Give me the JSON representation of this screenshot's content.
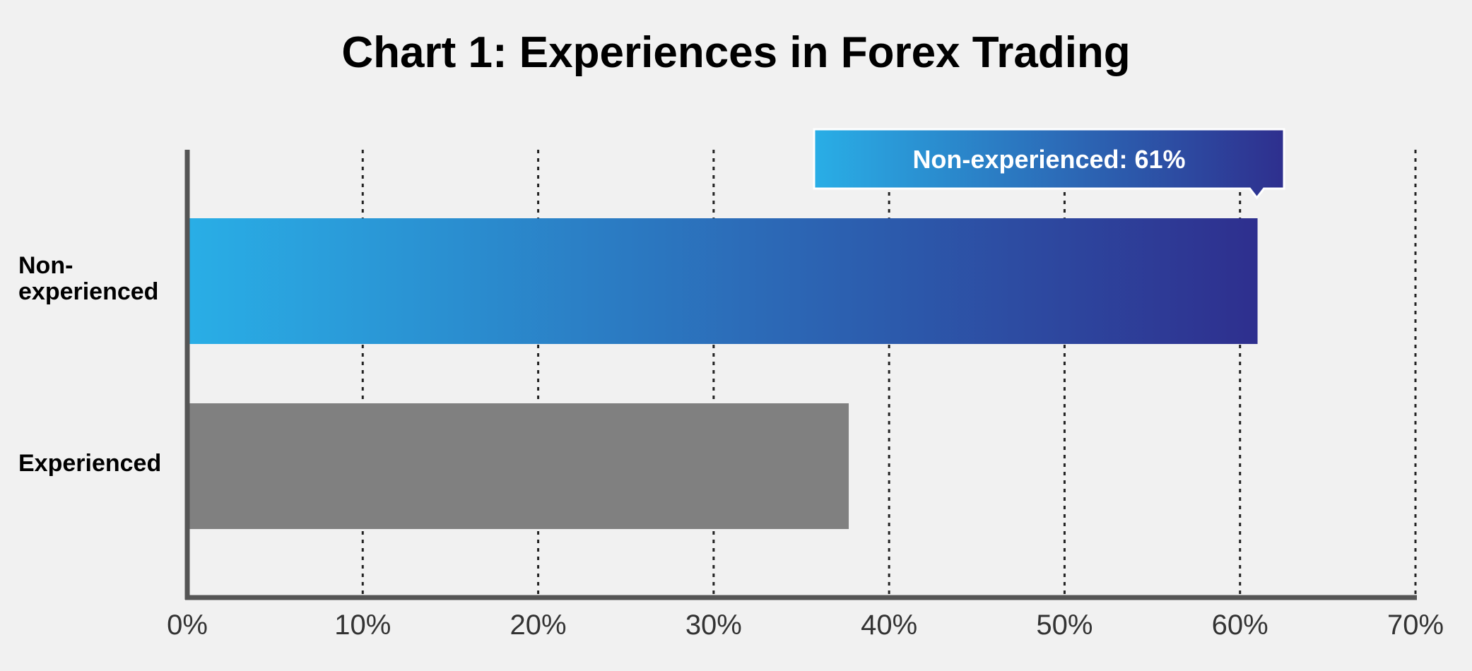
{
  "chart_data": {
    "type": "bar",
    "orientation": "horizontal",
    "title": "Chart 1: Experiences in Forex Trading",
    "categories": [
      "Non-experienced",
      "Experienced"
    ],
    "category_labels": [
      "Non-\nexperienced",
      "Experienced"
    ],
    "values": [
      61,
      37.7
    ],
    "unit": "%",
    "xlim": [
      0,
      70
    ],
    "x_ticks": [
      0,
      10,
      20,
      30,
      40,
      50,
      60,
      70
    ],
    "x_tick_labels": [
      "0%",
      "10%",
      "20%",
      "30%",
      "40%",
      "50%",
      "60%",
      "70%"
    ],
    "grid": "vertical-dotted",
    "bar_colors": {
      "Non-experienced": [
        "#29aee6",
        "#2e2f8e"
      ],
      "Experienced": [
        "#808080",
        "#808080"
      ]
    },
    "annotation": {
      "text": "Non-experienced: 61%",
      "category": "Non-experienced",
      "value": 61
    }
  }
}
